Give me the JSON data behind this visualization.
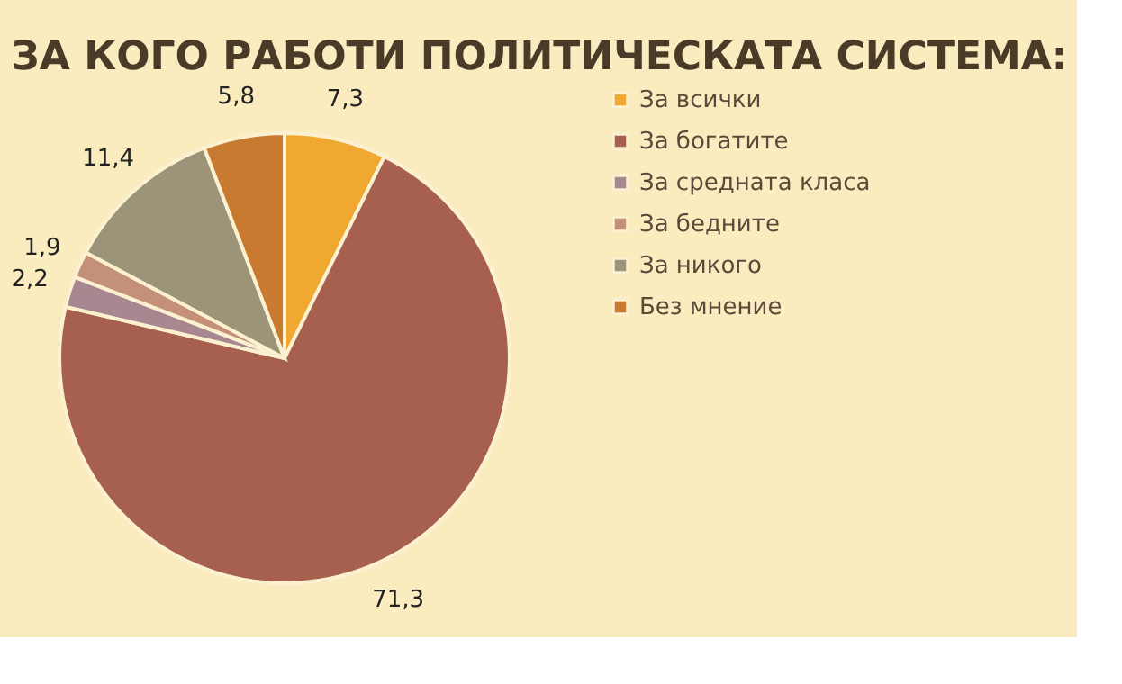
{
  "chart_data": {
    "type": "pie",
    "title": "ЗА КОГО РАБОТИ ПОЛИТИЧЕСКАТА СИСТЕМА:",
    "categories": [
      "За всички",
      "За богатите",
      "За средната класа",
      "За бедните",
      "За никого",
      "Без мнение"
    ],
    "values": [
      7.3,
      71.3,
      2.2,
      1.9,
      11.4,
      5.8
    ],
    "value_labels": [
      "7,3",
      "71,3",
      "2,2",
      "1,9",
      "11,4",
      "5,8"
    ],
    "colors": [
      "#f0a830",
      "#a8604e",
      "#a88890",
      "#c49078",
      "#9c9478",
      "#c87a30"
    ],
    "legend": "right"
  }
}
